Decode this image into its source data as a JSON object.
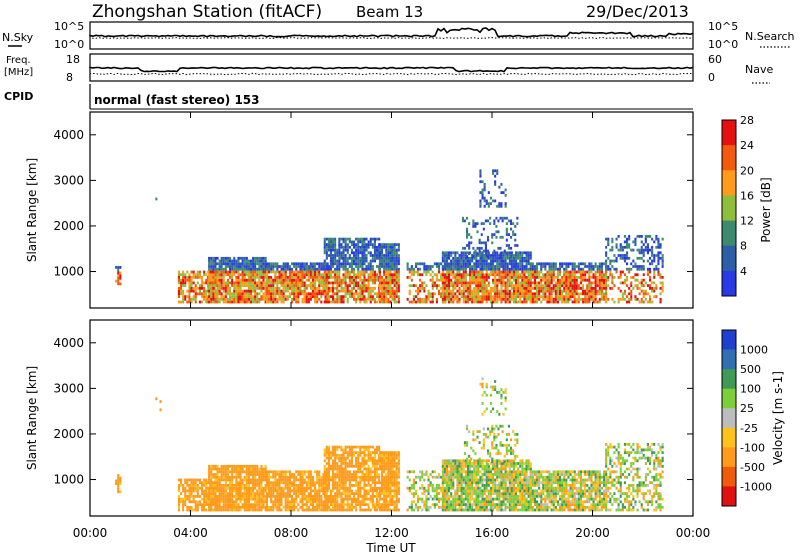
{
  "header": {
    "title": "Zhongshan Station (fitACF)",
    "beam": "Beam 13",
    "date": "29/Dec/2013"
  },
  "noise_panel": {
    "left_label": "N.Sky",
    "right_label": "N.Search",
    "left_ticks": [
      "10^5",
      "10^0"
    ],
    "right_ticks": [
      "10^5",
      "10^0"
    ]
  },
  "freq_panel": {
    "left_label_line1": "Freq.",
    "left_label_line2": "[MHz]",
    "right_label": "Nave",
    "left_ticks": [
      "18",
      "8"
    ],
    "right_ticks": [
      "60",
      "0"
    ]
  },
  "cpid": {
    "label": "CPID",
    "text": "normal (fast stereo) 153"
  },
  "x_axis": {
    "label": "Time UT",
    "ticks": [
      "00:00",
      "04:00",
      "08:00",
      "12:00",
      "16:00",
      "20:00",
      "00:00"
    ]
  },
  "chart_data": [
    {
      "type": "heatmap",
      "title": "",
      "xlabel": "",
      "ylabel": "Slant Range [km]",
      "x": [
        "00:00",
        "04:00",
        "08:00",
        "12:00",
        "16:00",
        "20:00",
        "00:00"
      ],
      "y_ticks": [
        1000,
        2000,
        3000,
        4000
      ],
      "ylim": [
        200,
        4500
      ],
      "xlim_hours": [
        0,
        24
      ],
      "colorbar": {
        "label": "Power [dB]",
        "ticks": [
          4,
          8,
          12,
          16,
          20,
          24,
          28
        ],
        "colors": [
          "#2a39e6",
          "#2d5fa8",
          "#3c8a70",
          "#8fbf3a",
          "#ff9a1a",
          "#f25a0c",
          "#e61010"
        ]
      }
    },
    {
      "type": "heatmap",
      "title": "",
      "xlabel": "Time UT",
      "ylabel": "Slant Range [km]",
      "x": [
        "00:00",
        "04:00",
        "08:00",
        "12:00",
        "16:00",
        "20:00",
        "00:00"
      ],
      "y_ticks": [
        1000,
        2000,
        3000,
        4000
      ],
      "ylim": [
        200,
        4500
      ],
      "xlim_hours": [
        0,
        24
      ],
      "colorbar": {
        "label": "Velocity [m s-1]",
        "ticks": [
          "1000",
          "500",
          "100",
          "25",
          "-25",
          "-100",
          "-500",
          "-1000"
        ],
        "colors": [
          "#1f3fd1",
          "#2f6fb2",
          "#3f9a55",
          "#7dcf3a",
          "#bdbdbd",
          "#ffc21a",
          "#ff9a1a",
          "#f05a0c",
          "#e01010"
        ]
      }
    }
  ]
}
